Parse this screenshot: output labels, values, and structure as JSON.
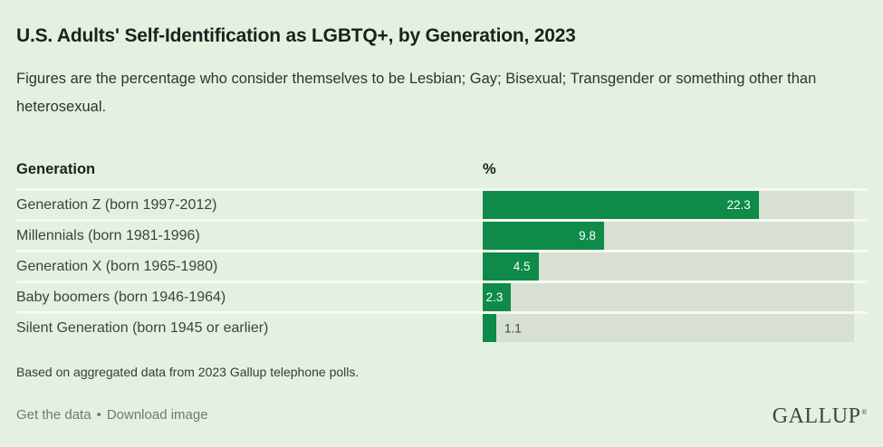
{
  "chart_data": {
    "type": "bar",
    "orientation": "horizontal",
    "title": "U.S. Adults' Self-Identification as LGBTQ+, by Generation, 2023",
    "subtitle": "Figures are the percentage who consider themselves to be Lesbian; Gay; Bisexual; Transgender or something other than heterosexual.",
    "row_header": "Generation",
    "value_header": "%",
    "categories": [
      "Generation Z (born 1997-2012)",
      "Millennials (born 1981-1996)",
      "Generation X (born 1965-1980)",
      "Baby boomers (born 1946-1964)",
      "Silent Generation (born 1945 or earlier)"
    ],
    "values": [
      22.3,
      9.8,
      4.5,
      2.3,
      1.1
    ],
    "xlim": [
      0,
      30
    ],
    "grid": false,
    "legend": "none",
    "bar_color": "#0e8b49",
    "track_color": "#d7e0d2"
  },
  "footer": {
    "source_note": "Based on aggregated data from 2023 Gallup telephone polls.",
    "links": {
      "get_data": "Get the data",
      "separator": "•",
      "download_image": "Download image"
    },
    "logo": "GALLUP",
    "logo_mark": "®"
  },
  "colors": {
    "background": "#e4f1e0",
    "divider": "#f6faf3",
    "bar": "#0e8b49",
    "track": "#d7e0d2"
  }
}
